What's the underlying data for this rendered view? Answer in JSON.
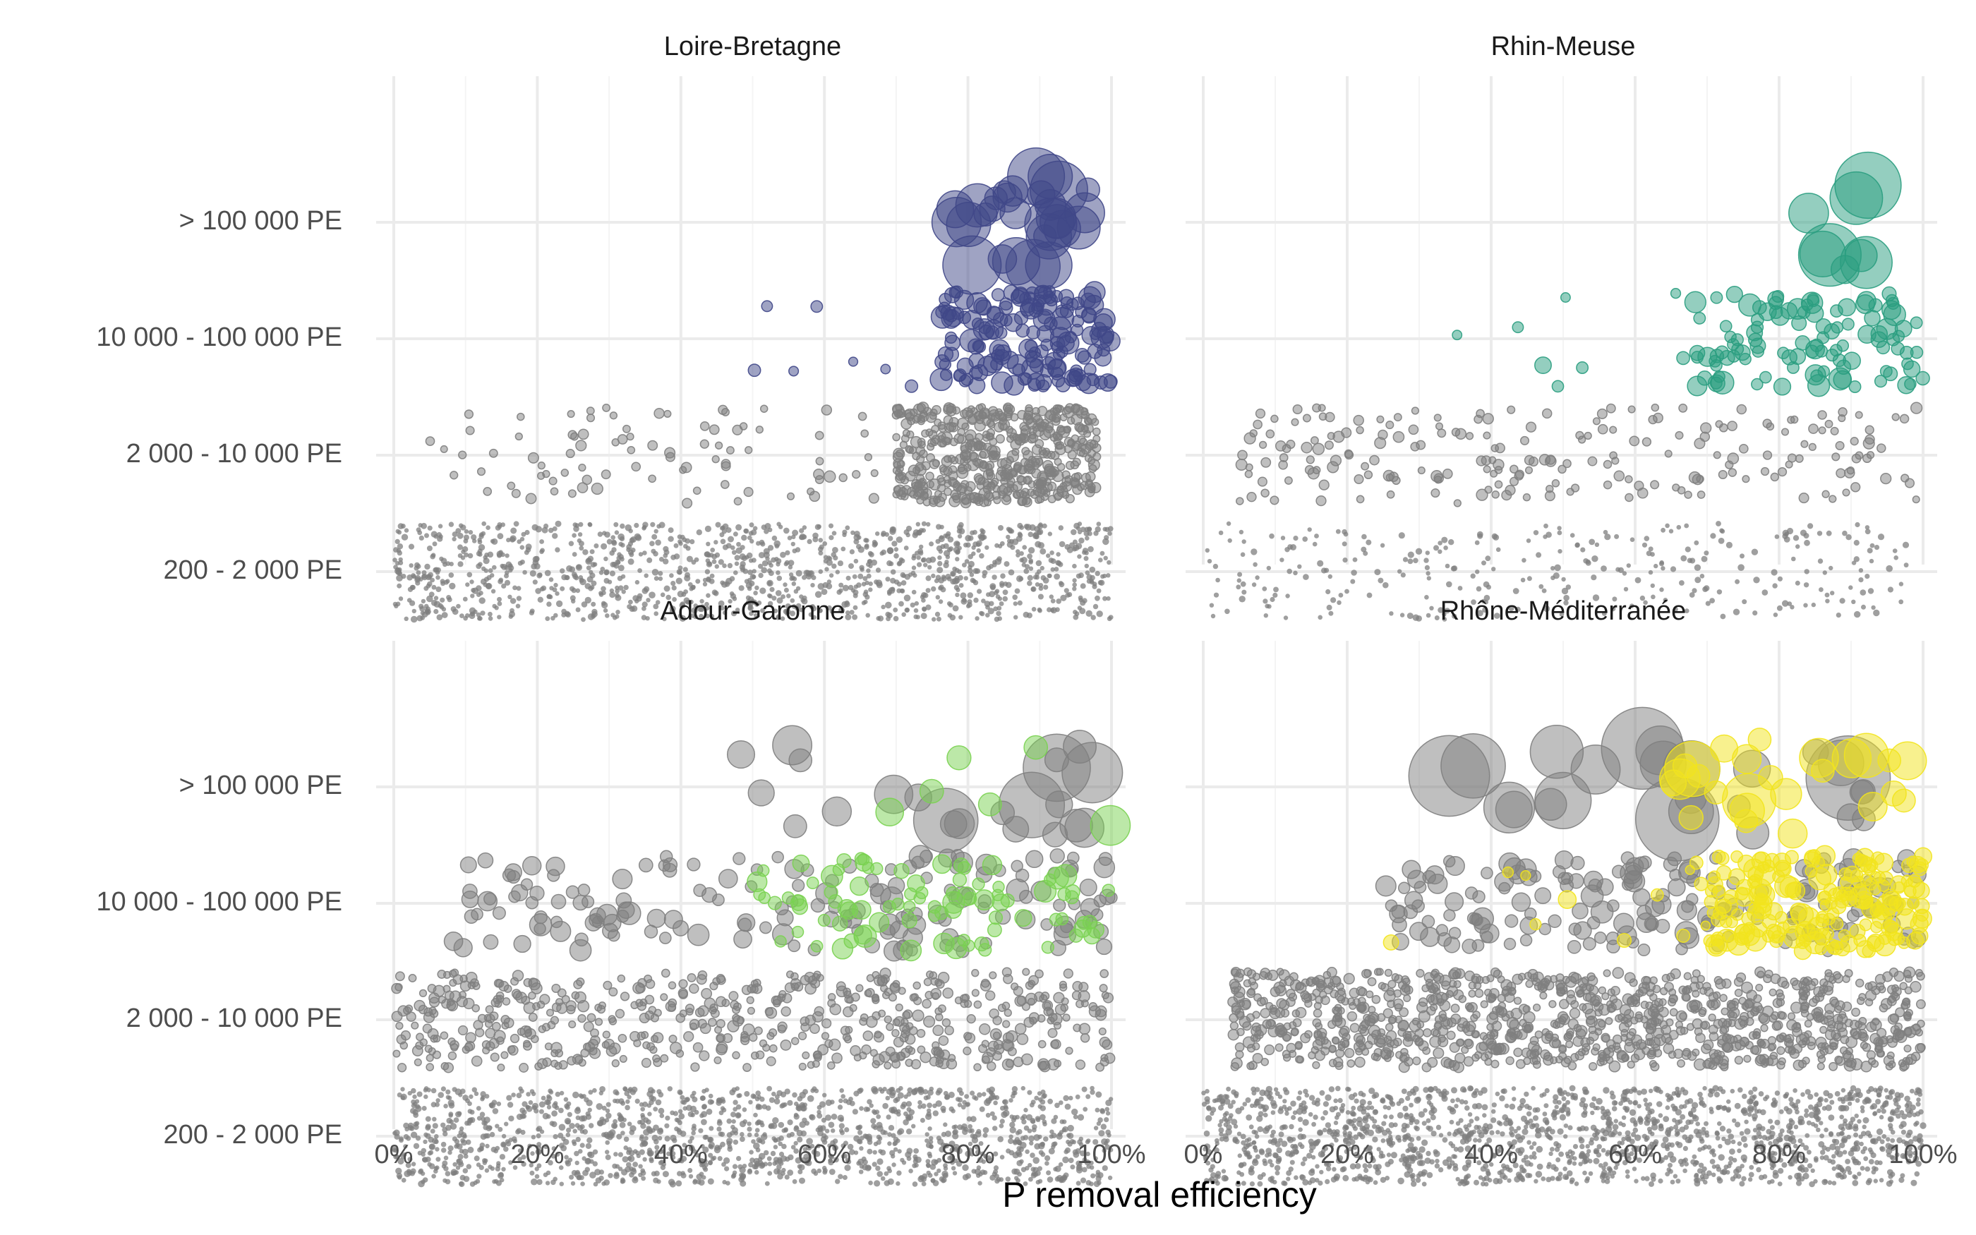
{
  "chart_data": {
    "type": "scatter",
    "xlabel": "P removal efficiency",
    "x_ticks": [
      "0%",
      "20%",
      "40%",
      "60%",
      "80%",
      "100%"
    ],
    "xlim": [
      0,
      100
    ],
    "y_categories": [
      "200 - 2 000 PE",
      "2 000 - 10 000 PE",
      "10 000 - 100 000 PE",
      "> 100 000 PE"
    ],
    "point_color_other": "#7f7f7f",
    "grid": true,
    "legend": "none",
    "facets": [
      {
        "title": "Loire-Bretagne",
        "highlight_color": "#404788",
        "groups": [
          {
            "category": "200 - 2 000 PE",
            "x_range": [
              0,
              100
            ],
            "count": 1300,
            "highlight": false,
            "size_range": [
              2,
              3
            ]
          },
          {
            "category": "2 000 - 10 000 PE",
            "x_range": [
              5,
              98
            ],
            "count": 120,
            "highlight": false,
            "size_range": [
              3,
              5
            ]
          },
          {
            "category": "2 000 - 10 000 PE",
            "x_range": [
              70,
              98
            ],
            "count": 500,
            "highlight": false,
            "size_range": [
              3,
              5
            ]
          },
          {
            "category": "10 000 - 100 000 PE",
            "x_range": [
              76,
              100
            ],
            "count": 170,
            "highlight": true,
            "size_range": [
              5,
              10
            ]
          },
          {
            "category": "10 000 - 100 000 PE",
            "x_range": [
              50,
              78
            ],
            "count": 8,
            "highlight": true,
            "size_range": [
              4,
              7
            ]
          },
          {
            "category": "> 100 000 PE",
            "x_range": [
              78,
              100
            ],
            "count": 30,
            "highlight": true,
            "size_range": [
              10,
              30
            ]
          }
        ]
      },
      {
        "title": "Rhin-Meuse",
        "highlight_color": "#2a9d80",
        "groups": [
          {
            "category": "200 - 2 000 PE",
            "x_range": [
              0,
              98
            ],
            "count": 320,
            "highlight": false,
            "size_range": [
              2,
              3
            ]
          },
          {
            "category": "2 000 - 10 000 PE",
            "x_range": [
              5,
              100
            ],
            "count": 220,
            "highlight": false,
            "size_range": [
              3,
              5
            ]
          },
          {
            "category": "10 000 - 100 000 PE",
            "x_range": [
              68,
              100
            ],
            "count": 110,
            "highlight": true,
            "size_range": [
              5,
              10
            ]
          },
          {
            "category": "10 000 - 100 000 PE",
            "x_range": [
              35,
              68
            ],
            "count": 8,
            "highlight": true,
            "size_range": [
              4,
              8
            ]
          },
          {
            "category": "> 100 000 PE",
            "x_range": [
              84,
              98
            ],
            "count": 8,
            "highlight": true,
            "size_range": [
              12,
              32
            ]
          }
        ]
      },
      {
        "title": "Adour-Garonne",
        "highlight_color": "#7ad151",
        "groups": [
          {
            "category": "200 - 2 000 PE",
            "x_range": [
              0,
              100
            ],
            "count": 1500,
            "highlight": false,
            "size_range": [
              2,
              3
            ]
          },
          {
            "category": "2 000 - 10 000 PE",
            "x_range": [
              0,
              100
            ],
            "count": 600,
            "highlight": false,
            "size_range": [
              3,
              5
            ]
          },
          {
            "category": "10 000 - 100 000 PE",
            "x_range": [
              8,
              100
            ],
            "count": 170,
            "highlight": false,
            "size_range": [
              5,
              10
            ]
          },
          {
            "category": "10 000 - 100 000 PE",
            "x_range": [
              50,
              100
            ],
            "count": 90,
            "highlight": true,
            "size_range": [
              5,
              10
            ]
          },
          {
            "category": "> 100 000 PE",
            "x_range": [
              45,
              100
            ],
            "count": 22,
            "highlight": false,
            "size_range": [
              10,
              30
            ]
          },
          {
            "category": "> 100 000 PE",
            "x_range": [
              50,
              100
            ],
            "count": 6,
            "highlight": true,
            "size_range": [
              10,
              18
            ]
          }
        ]
      },
      {
        "title": "Rhône-Méditerranée",
        "highlight_color": "#f2e41d",
        "groups": [
          {
            "category": "200 - 2 000 PE",
            "x_range": [
              0,
              100
            ],
            "count": 1700,
            "highlight": false,
            "size_range": [
              2,
              3
            ]
          },
          {
            "category": "2 000 - 10 000 PE",
            "x_range": [
              4,
              100
            ],
            "count": 1100,
            "highlight": false,
            "size_range": [
              3,
              5
            ]
          },
          {
            "category": "10 000 - 100 000 PE",
            "x_range": [
              25,
              100
            ],
            "count": 180,
            "highlight": false,
            "size_range": [
              5,
              10
            ]
          },
          {
            "category": "10 000 - 100 000 PE",
            "x_range": [
              70,
              100
            ],
            "count": 200,
            "highlight": true,
            "size_range": [
              5,
              10
            ]
          },
          {
            "category": "10 000 - 100 000 PE",
            "x_range": [
              14,
              70
            ],
            "count": 12,
            "highlight": true,
            "size_range": [
              4,
              8
            ]
          },
          {
            "category": "> 100 000 PE",
            "x_range": [
              34,
              92
            ],
            "count": 25,
            "highlight": false,
            "size_range": [
              10,
              40
            ]
          },
          {
            "category": "> 100 000 PE",
            "x_range": [
              65,
              98
            ],
            "count": 25,
            "highlight": true,
            "size_range": [
              10,
              25
            ]
          }
        ]
      }
    ]
  }
}
